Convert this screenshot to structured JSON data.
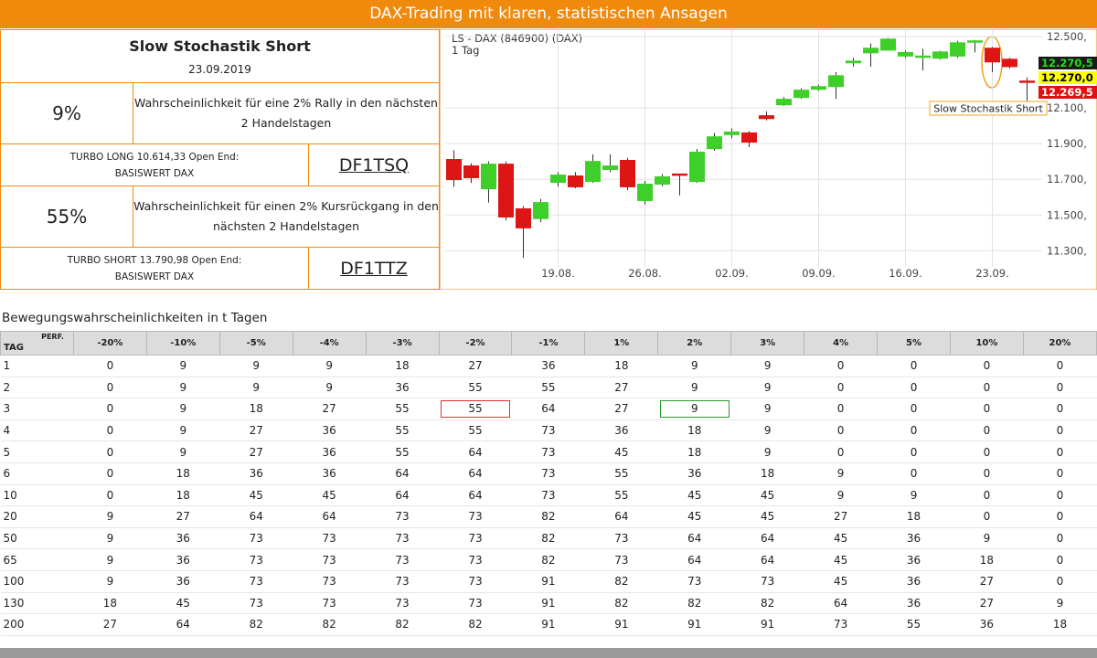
{
  "header": {
    "title": "DAX-Trading mit klaren, statistischen Ansagen"
  },
  "signal": {
    "title": "Slow Stochastik Short",
    "date": "23.09.2019",
    "long": {
      "percent": "9%",
      "text": "Wahrscheinlichkeit für eine 2% Rally in den nächsten 2 Handelstagen",
      "product": "TURBO LONG 10.614,33 Open End:",
      "underlying": "BASISWERT DAX",
      "wkn": "DF1TSQ"
    },
    "short": {
      "percent": "55%",
      "text": "Wahrscheinlichkeit für einen 2% Kursrückgang in den nächsten 2 Handelstagen",
      "product": "TURBO SHORT 13.790,98 Open End:",
      "underlying": "BASISWERT DAX",
      "wkn": "DF1TTZ"
    }
  },
  "chart_data": {
    "type": "candlestick",
    "title": "LS - DAX (846900) (DAX)",
    "subtitle": "1 Tag",
    "categories": [
      null,
      null,
      null,
      null,
      null,
      null,
      "19.08.",
      null,
      null,
      null,
      null,
      "26.08.",
      null,
      null,
      null,
      null,
      "02.09.",
      null,
      null,
      null,
      null,
      "09.09.",
      null,
      null,
      null,
      null,
      "16.09.",
      null,
      null,
      null,
      null,
      "23.09.",
      null,
      null
    ],
    "open": [
      11811,
      11775,
      11647,
      11785,
      11535,
      11480,
      11683,
      11719,
      11688,
      11755,
      11806,
      11581,
      11673,
      11730,
      11688,
      11872,
      11950,
      11960,
      12056,
      12117,
      12158,
      12204,
      12219,
      12352,
      12408,
      12423,
      12390,
      12385,
      12378,
      12390,
      12470,
      12434,
      12372,
      12250
    ],
    "high": [
      11862,
      11790,
      11800,
      11800,
      11550,
      11590,
      11740,
      11740,
      11840,
      11840,
      11820,
      11690,
      11730,
      11730,
      11870,
      11960,
      11985,
      11970,
      12080,
      12160,
      12210,
      12230,
      12300,
      12380,
      12460,
      12490,
      12420,
      12430,
      12420,
      12475,
      12480,
      12440,
      12380,
      12270
    ],
    "low": [
      11658,
      11680,
      11570,
      11470,
      11260,
      11460,
      11660,
      11650,
      11680,
      11740,
      11640,
      11560,
      11660,
      11610,
      11680,
      11860,
      11930,
      11880,
      12030,
      12110,
      12150,
      12195,
      12150,
      12330,
      12330,
      12420,
      12380,
      12310,
      12370,
      12380,
      12410,
      12300,
      12320,
      12140
    ],
    "close": [
      11698,
      11709,
      11785,
      11489,
      11428,
      11570,
      11724,
      11658,
      11800,
      11775,
      11658,
      11673,
      11714,
      11725,
      11852,
      11938,
      11965,
      11908,
      12040,
      12148,
      12199,
      12219,
      12280,
      12362,
      12434,
      12485,
      12410,
      12390,
      12413,
      12464,
      12475,
      12357,
      12331,
      12245
    ],
    "up_color": "#3fcf2a",
    "down_color": "#dd1515",
    "ylim": [
      11210,
      12540
    ],
    "yticks": [
      {
        "value": 11300,
        "label": "11.300,"
      },
      {
        "value": 11500,
        "label": "11.500,"
      },
      {
        "value": 11700,
        "label": "11.700,"
      },
      {
        "value": 11900,
        "label": "11.900,"
      },
      {
        "value": 12100,
        "label": "12.100,"
      },
      {
        "value": 12500,
        "label": "12.500,"
      }
    ],
    "grid": true,
    "price_labels": [
      {
        "label": "12.270,5",
        "color": "#1a1a1a",
        "text_color": "#22dd22"
      },
      {
        "label": "12.270,0",
        "color": "#ffff00",
        "text_color": "#000000"
      },
      {
        "label": "12.269,5",
        "color": "#e01010",
        "text_color": "#ffffff"
      }
    ],
    "annotation": "Slow Stochastik Short"
  },
  "table": {
    "title": "Bewegungswahrscheinlichkeiten in t Tagen",
    "row_header": "TAG",
    "column_header": "PERF.",
    "columns": [
      "-20%",
      "-10%",
      "-5%",
      "-4%",
      "-3%",
      "-2%",
      "-1%",
      "1%",
      "2%",
      "3%",
      "4%",
      "5%",
      "10%",
      "20%"
    ],
    "rows": [
      [
        1,
        0,
        9,
        9,
        9,
        18,
        27,
        36,
        18,
        9,
        9,
        0,
        0,
        0,
        0
      ],
      [
        2,
        0,
        9,
        9,
        9,
        36,
        55,
        55,
        27,
        9,
        9,
        0,
        0,
        0,
        0
      ],
      [
        3,
        0,
        9,
        18,
        27,
        55,
        55,
        64,
        27,
        9,
        9,
        0,
        0,
        0,
        0
      ],
      [
        4,
        0,
        9,
        27,
        36,
        55,
        55,
        73,
        36,
        18,
        9,
        0,
        0,
        0,
        0
      ],
      [
        5,
        0,
        9,
        27,
        36,
        55,
        64,
        73,
        45,
        18,
        9,
        0,
        0,
        0,
        0
      ],
      [
        6,
        0,
        18,
        36,
        36,
        64,
        64,
        73,
        55,
        36,
        18,
        9,
        0,
        0,
        0
      ],
      [
        10,
        0,
        18,
        45,
        45,
        64,
        64,
        73,
        55,
        45,
        45,
        9,
        9,
        0,
        0
      ],
      [
        20,
        9,
        27,
        64,
        64,
        73,
        73,
        82,
        64,
        45,
        45,
        27,
        18,
        0,
        0
      ],
      [
        50,
        9,
        36,
        73,
        73,
        73,
        73,
        82,
        73,
        64,
        64,
        45,
        36,
        9,
        0
      ],
      [
        65,
        9,
        36,
        73,
        73,
        73,
        73,
        82,
        73,
        64,
        64,
        45,
        36,
        18,
        0
      ],
      [
        100,
        9,
        36,
        73,
        73,
        73,
        73,
        91,
        82,
        73,
        73,
        45,
        36,
        27,
        0
      ],
      [
        130,
        18,
        45,
        73,
        73,
        73,
        73,
        91,
        82,
        82,
        82,
        64,
        36,
        27,
        9
      ],
      [
        200,
        27,
        64,
        82,
        82,
        82,
        82,
        91,
        91,
        91,
        91,
        73,
        55,
        36,
        18
      ]
    ]
  }
}
